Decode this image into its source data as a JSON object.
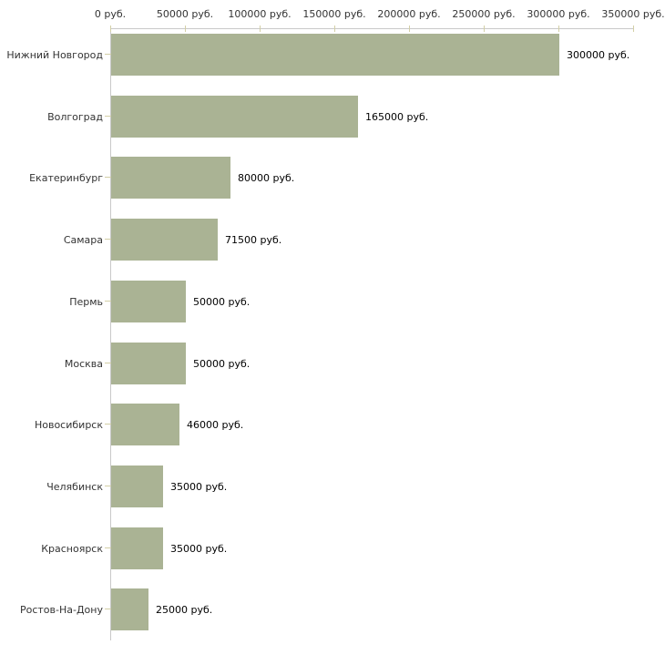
{
  "chart_data": {
    "type": "bar",
    "orientation": "horizontal",
    "title": "",
    "xlabel": "",
    "ylabel": "",
    "unit": "руб.",
    "categories": [
      "Нижний Новгород",
      "Волгоград",
      "Екатеринбург",
      "Самара",
      "Пермь",
      "Москва",
      "Новосибирск",
      "Челябинск",
      "Красноярск",
      "Ростов-На-Дону"
    ],
    "values": [
      300000,
      165000,
      80000,
      71500,
      50000,
      50000,
      46000,
      35000,
      35000,
      25000
    ],
    "value_labels": [
      "300000 руб.",
      "165000 руб.",
      "80000 руб.",
      "71500 руб.",
      "50000 руб.",
      "50000 руб.",
      "46000 руб.",
      "35000 руб.",
      "35000 руб.",
      "25000 руб."
    ],
    "x_axis": {
      "position": "top",
      "min": 0,
      "max": 350000,
      "ticks": [
        0,
        50000,
        100000,
        150000,
        200000,
        250000,
        300000,
        350000
      ],
      "tick_labels": [
        "0 руб.",
        "50000 руб.",
        "100000 руб.",
        "150000 руб.",
        "200000 руб.",
        "250000 руб.",
        "300000 руб.",
        "350000 руб."
      ]
    },
    "grid": false,
    "legend": false,
    "colors": {
      "bar": "#aab394",
      "axis_line": "#c9c9c9",
      "tick_mark": "#d3cfa6",
      "category_text": "#333333",
      "value_text": "#000000",
      "background": "#ffffff"
    }
  }
}
